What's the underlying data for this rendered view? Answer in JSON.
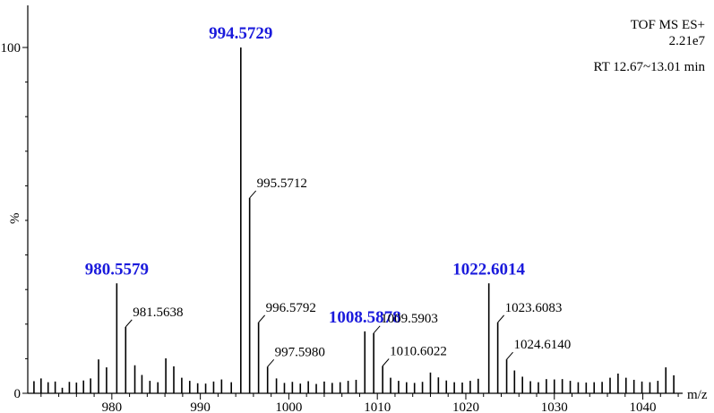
{
  "chart_data": {
    "type": "bar",
    "instrument_label": "TOF MS ES+",
    "intensity_label": "2.21e7",
    "rt_label": "RT 12.67~13.01 min",
    "xlabel": "m/z",
    "ylabel": "%",
    "xlim": [
      970.5,
      1044.5
    ],
    "ylim": [
      0,
      100
    ],
    "x_ticks": [
      980,
      990,
      1000,
      1010,
      1020,
      1030,
      1040
    ],
    "y_ticks": [
      0,
      100
    ],
    "highlight_color": "#1a1adc",
    "labeled_peaks": [
      {
        "mz": 980.5579,
        "intensity": 31.8,
        "label": "980.5579",
        "highlight": true
      },
      {
        "mz": 981.5638,
        "intensity": 19.2,
        "label": "981.5638",
        "highlight": false
      },
      {
        "mz": 994.5729,
        "intensity": 100,
        "label": "994.5729",
        "highlight": true
      },
      {
        "mz": 995.5712,
        "intensity": 56.5,
        "label": "995.5712",
        "highlight": false
      },
      {
        "mz": 996.5792,
        "intensity": 20.5,
        "label": "996.5792",
        "highlight": false
      },
      {
        "mz": 997.598,
        "intensity": 7.7,
        "label": "997.5980",
        "highlight": false
      },
      {
        "mz": 1008.5878,
        "intensity": 17.9,
        "label": "1008.5878",
        "highlight": true
      },
      {
        "mz": 1009.5903,
        "intensity": 17.4,
        "label": "1009.5903",
        "highlight": false
      },
      {
        "mz": 1010.6022,
        "intensity": 7.9,
        "label": "1010.6022",
        "highlight": false
      },
      {
        "mz": 1022.6014,
        "intensity": 31.8,
        "label": "1022.6014",
        "highlight": true
      },
      {
        "mz": 1023.6083,
        "intensity": 20.5,
        "label": "1023.6083",
        "highlight": false
      },
      {
        "mz": 1024.614,
        "intensity": 9.8,
        "label": "1024.6140",
        "highlight": false
      }
    ],
    "minor_peaks": [
      {
        "mz": 971.2,
        "intensity": 3.5
      },
      {
        "mz": 972.0,
        "intensity": 4.3
      },
      {
        "mz": 972.8,
        "intensity": 3.2
      },
      {
        "mz": 973.6,
        "intensity": 3.4
      },
      {
        "mz": 974.4,
        "intensity": 1.6
      },
      {
        "mz": 975.2,
        "intensity": 3.3
      },
      {
        "mz": 976.0,
        "intensity": 3.1
      },
      {
        "mz": 976.8,
        "intensity": 3.7
      },
      {
        "mz": 977.6,
        "intensity": 4.3
      },
      {
        "mz": 978.5,
        "intensity": 9.8
      },
      {
        "mz": 979.4,
        "intensity": 7.5
      },
      {
        "mz": 982.6,
        "intensity": 8.1
      },
      {
        "mz": 983.4,
        "intensity": 5.3
      },
      {
        "mz": 984.3,
        "intensity": 3.6
      },
      {
        "mz": 985.2,
        "intensity": 3.2
      },
      {
        "mz": 986.1,
        "intensity": 10.1
      },
      {
        "mz": 987.0,
        "intensity": 7.8
      },
      {
        "mz": 987.9,
        "intensity": 4.5
      },
      {
        "mz": 988.8,
        "intensity": 3.6
      },
      {
        "mz": 989.7,
        "intensity": 2.9
      },
      {
        "mz": 990.6,
        "intensity": 2.8
      },
      {
        "mz": 991.5,
        "intensity": 3.4
      },
      {
        "mz": 992.4,
        "intensity": 4.0
      },
      {
        "mz": 993.5,
        "intensity": 3.2
      },
      {
        "mz": 998.6,
        "intensity": 4.3
      },
      {
        "mz": 999.5,
        "intensity": 3.0
      },
      {
        "mz": 1000.4,
        "intensity": 3.3
      },
      {
        "mz": 1001.3,
        "intensity": 2.8
      },
      {
        "mz": 1002.2,
        "intensity": 3.5
      },
      {
        "mz": 1003.1,
        "intensity": 2.7
      },
      {
        "mz": 1004.0,
        "intensity": 3.4
      },
      {
        "mz": 1004.9,
        "intensity": 3.0
      },
      {
        "mz": 1005.8,
        "intensity": 3.2
      },
      {
        "mz": 1006.7,
        "intensity": 3.6
      },
      {
        "mz": 1007.6,
        "intensity": 3.9
      },
      {
        "mz": 1011.5,
        "intensity": 4.5
      },
      {
        "mz": 1012.4,
        "intensity": 3.6
      },
      {
        "mz": 1013.3,
        "intensity": 3.2
      },
      {
        "mz": 1014.2,
        "intensity": 3.0
      },
      {
        "mz": 1015.1,
        "intensity": 3.3
      },
      {
        "mz": 1016.0,
        "intensity": 6.0
      },
      {
        "mz": 1016.9,
        "intensity": 4.6
      },
      {
        "mz": 1017.8,
        "intensity": 3.7
      },
      {
        "mz": 1018.7,
        "intensity": 3.2
      },
      {
        "mz": 1019.6,
        "intensity": 3.1
      },
      {
        "mz": 1020.5,
        "intensity": 3.6
      },
      {
        "mz": 1021.4,
        "intensity": 4.2
      },
      {
        "mz": 1025.5,
        "intensity": 6.6
      },
      {
        "mz": 1026.4,
        "intensity": 4.8
      },
      {
        "mz": 1027.3,
        "intensity": 3.5
      },
      {
        "mz": 1028.2,
        "intensity": 3.2
      },
      {
        "mz": 1029.1,
        "intensity": 4.1
      },
      {
        "mz": 1030.0,
        "intensity": 4.0
      },
      {
        "mz": 1030.9,
        "intensity": 4.1
      },
      {
        "mz": 1031.8,
        "intensity": 3.6
      },
      {
        "mz": 1032.7,
        "intensity": 3.2
      },
      {
        "mz": 1033.6,
        "intensity": 3.1
      },
      {
        "mz": 1034.5,
        "intensity": 3.2
      },
      {
        "mz": 1035.4,
        "intensity": 3.3
      },
      {
        "mz": 1036.3,
        "intensity": 4.5
      },
      {
        "mz": 1037.2,
        "intensity": 5.7
      },
      {
        "mz": 1038.1,
        "intensity": 4.5
      },
      {
        "mz": 1039.0,
        "intensity": 3.9
      },
      {
        "mz": 1039.9,
        "intensity": 3.4
      },
      {
        "mz": 1040.8,
        "intensity": 3.2
      },
      {
        "mz": 1041.7,
        "intensity": 3.6
      },
      {
        "mz": 1042.6,
        "intensity": 7.5
      },
      {
        "mz": 1043.5,
        "intensity": 5.2
      }
    ]
  }
}
